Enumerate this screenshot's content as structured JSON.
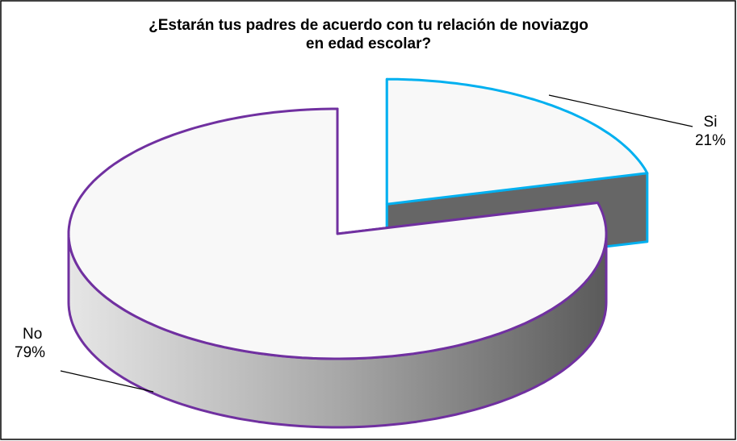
{
  "chart_data": {
    "type": "pie",
    "title": "¿Estarán tus padres de acuerdo con tu relación de noviazgo\nen edad escolar?",
    "categories": [
      "Si",
      "No"
    ],
    "values": [
      21,
      79
    ],
    "value_labels": [
      "21%",
      "79%"
    ],
    "colors": [
      "#00b0f0",
      "#7030a0"
    ],
    "three_d": true,
    "exploded": [
      0
    ]
  }
}
